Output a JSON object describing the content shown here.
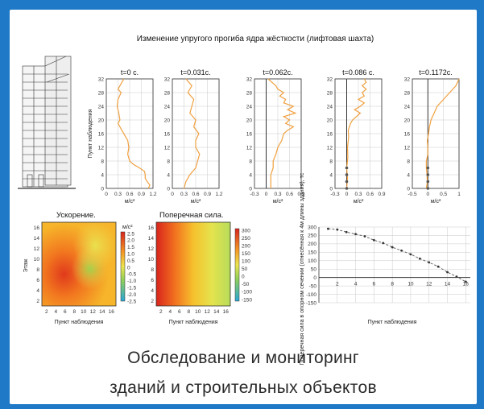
{
  "main_title": "Изменение упругого прогиба ядра жёсткости (лифтовая шахта)",
  "caption_line1": "Обследование и мониторинг",
  "caption_line2": "зданий и строительных объектов",
  "colors": {
    "frame": "#1f79c6",
    "curve": "#f0a040",
    "axis": "#333333"
  },
  "chart_data": [
    {
      "type": "line",
      "ylabel": "Пункт наблюдения",
      "xlabel": "м/с²",
      "panels": [
        {
          "title": "t=0 с.",
          "xticks": [
            0,
            0.3,
            0.6,
            0.9,
            1.2
          ],
          "xlim": [
            0,
            1.2
          ],
          "xtick_labels": [
            "0",
            "0.3",
            "0.6",
            "0.9",
            "1.2"
          ],
          "points": [
            [
              1.08,
              0
            ],
            [
              1.12,
              1
            ],
            [
              1.05,
              2
            ],
            [
              1.0,
              3
            ],
            [
              1.0,
              4
            ],
            [
              0.98,
              5
            ],
            [
              0.85,
              6
            ],
            [
              0.7,
              7
            ],
            [
              0.6,
              8
            ],
            [
              0.55,
              10
            ],
            [
              0.58,
              12
            ],
            [
              0.55,
              14
            ],
            [
              0.5,
              15
            ],
            [
              0.4,
              17
            ],
            [
              0.3,
              19
            ],
            [
              0.35,
              20
            ],
            [
              0.32,
              22
            ],
            [
              0.28,
              24
            ],
            [
              0.3,
              26
            ],
            [
              0.38,
              28
            ],
            [
              0.3,
              29
            ],
            [
              0.4,
              31
            ],
            [
              0.45,
              32
            ]
          ]
        },
        {
          "title": "t=0.031c.",
          "xticks": [
            0,
            0.3,
            0.6,
            0.9,
            1.2
          ],
          "xlim": [
            0,
            1.2
          ],
          "xtick_labels": [
            "0",
            "0.3",
            "0.6",
            "0.9",
            "1.2"
          ],
          "points": [
            [
              0.3,
              0
            ],
            [
              0.35,
              2
            ],
            [
              0.45,
              4
            ],
            [
              0.6,
              6
            ],
            [
              0.65,
              8
            ],
            [
              0.7,
              10
            ],
            [
              0.6,
              12
            ],
            [
              0.6,
              14
            ],
            [
              0.68,
              16
            ],
            [
              0.55,
              18
            ],
            [
              0.6,
              20
            ],
            [
              0.45,
              22
            ],
            [
              0.5,
              24
            ],
            [
              0.55,
              26
            ],
            [
              0.4,
              28
            ],
            [
              0.5,
              30
            ],
            [
              0.35,
              32
            ]
          ]
        },
        {
          "title": "t=0.062c.",
          "xticks": [
            -0.3,
            0,
            0.3,
            0.6,
            0.9
          ],
          "xlim": [
            -0.3,
            0.9
          ],
          "xtick_labels": [
            "-0.3",
            "0",
            "0.3",
            "0.6",
            "0.9"
          ],
          "points": [
            [
              0.12,
              0
            ],
            [
              0.12,
              2
            ],
            [
              0.12,
              4
            ],
            [
              0.18,
              6
            ],
            [
              0.18,
              8
            ],
            [
              0.25,
              10
            ],
            [
              0.3,
              12
            ],
            [
              0.4,
              14
            ],
            [
              0.45,
              16
            ],
            [
              0.55,
              17
            ],
            [
              0.7,
              18
            ],
            [
              0.5,
              19
            ],
            [
              0.6,
              20
            ],
            [
              0.45,
              21
            ],
            [
              0.75,
              22
            ],
            [
              0.55,
              23
            ],
            [
              0.7,
              24
            ],
            [
              0.45,
              25
            ],
            [
              0.5,
              26
            ],
            [
              0.35,
              27
            ],
            [
              0.45,
              28
            ],
            [
              0.3,
              29
            ],
            [
              0.25,
              30
            ],
            [
              0.15,
              31
            ],
            [
              0.05,
              32
            ]
          ]
        },
        {
          "title": "t=0.086 c.",
          "xticks": [
            -0.3,
            0,
            0.3,
            0.6,
            0.9
          ],
          "xlim": [
            -0.3,
            0.9
          ],
          "xtick_labels": [
            "-0.3",
            "0",
            "0.3",
            "0.6",
            "0.9"
          ],
          "points": [
            [
              0.0,
              0
            ],
            [
              0.02,
              3
            ],
            [
              0.0,
              6
            ],
            [
              0.03,
              9
            ],
            [
              0.02,
              12
            ],
            [
              0.05,
              15
            ],
            [
              0.04,
              17
            ],
            [
              0.1,
              19
            ],
            [
              0.15,
              20
            ],
            [
              0.25,
              21
            ],
            [
              0.35,
              22
            ],
            [
              0.2,
              23
            ],
            [
              0.35,
              24
            ],
            [
              0.45,
              25
            ],
            [
              0.3,
              26
            ],
            [
              0.45,
              27
            ],
            [
              0.4,
              28
            ],
            [
              0.5,
              29
            ],
            [
              0.4,
              30
            ],
            [
              0.5,
              31
            ],
            [
              0.45,
              32
            ]
          ]
        },
        {
          "title": "t=0.1172c.",
          "xticks": [
            -0.5,
            0,
            0.5,
            1
          ],
          "xlim": [
            -0.5,
            1
          ],
          "xtick_labels": [
            "-0.5",
            "0",
            "0.5",
            "1"
          ],
          "points": [
            [
              -0.05,
              0
            ],
            [
              -0.02,
              2
            ],
            [
              -0.03,
              4
            ],
            [
              -0.05,
              6
            ],
            [
              -0.05,
              8
            ],
            [
              0.0,
              10
            ],
            [
              0.0,
              12
            ],
            [
              -0.02,
              14
            ],
            [
              0.02,
              16
            ],
            [
              0.05,
              18
            ],
            [
              0.1,
              20
            ],
            [
              0.15,
              21
            ],
            [
              0.2,
              22
            ],
            [
              0.3,
              24
            ],
            [
              0.5,
              26
            ],
            [
              0.7,
              28
            ],
            [
              0.9,
              30
            ],
            [
              1.0,
              32
            ]
          ]
        }
      ],
      "yticks": [
        0,
        4,
        8,
        12,
        16,
        20,
        24,
        28,
        32
      ],
      "ylim": [
        0,
        32
      ]
    },
    {
      "type": "heatmap",
      "title": "Ускорение.",
      "xlabel": "Пункт наблюдения",
      "ylabel": "Этаж",
      "xticks": [
        2,
        4,
        6,
        8,
        10,
        12,
        14,
        16
      ],
      "yticks": [
        2,
        4,
        6,
        8,
        10,
        12,
        14,
        16
      ],
      "colorbar_unit": "м/с²",
      "colorbar_ticks": [
        "2.5",
        "2.0",
        "1.5",
        "1.0",
        "0.5",
        "0",
        "-0.5",
        "-1.0",
        "-1.5",
        "-2.0",
        "-2.5"
      ]
    },
    {
      "type": "heatmap",
      "title": "Поперечная сила.",
      "xlabel": "Пункт наблюдения",
      "xticks": [
        2,
        4,
        6,
        8,
        10,
        12,
        14,
        16
      ],
      "yticks": [
        2,
        4,
        6,
        8,
        10,
        12,
        14,
        16
      ],
      "colorbar_ticks": [
        "300",
        "250",
        "200",
        "150",
        "100",
        "50",
        "0",
        "-50",
        "-100",
        "-150"
      ]
    },
    {
      "type": "line",
      "xlabel": "Пункт наблюдения",
      "ylabel": "Поперечная сила в опорном сечении (отнесённая к 4м длины здания), тс",
      "xticks": [
        2,
        4,
        6,
        8,
        10,
        12,
        14,
        16
      ],
      "yticks": [
        300,
        250,
        200,
        150,
        100,
        50,
        0,
        -50,
        -100,
        -150
      ],
      "xlim": [
        0,
        16.5
      ],
      "ylim": [
        -150,
        300
      ],
      "points": [
        [
          1,
          290
        ],
        [
          2,
          285
        ],
        [
          3,
          270
        ],
        [
          4,
          258
        ],
        [
          5,
          245
        ],
        [
          6,
          222
        ],
        [
          7,
          205
        ],
        [
          8,
          180
        ],
        [
          9,
          160
        ],
        [
          10,
          138
        ],
        [
          11,
          112
        ],
        [
          12,
          90
        ],
        [
          13,
          65
        ],
        [
          14,
          32
        ],
        [
          15,
          5
        ],
        [
          16,
          -25
        ]
      ]
    }
  ]
}
